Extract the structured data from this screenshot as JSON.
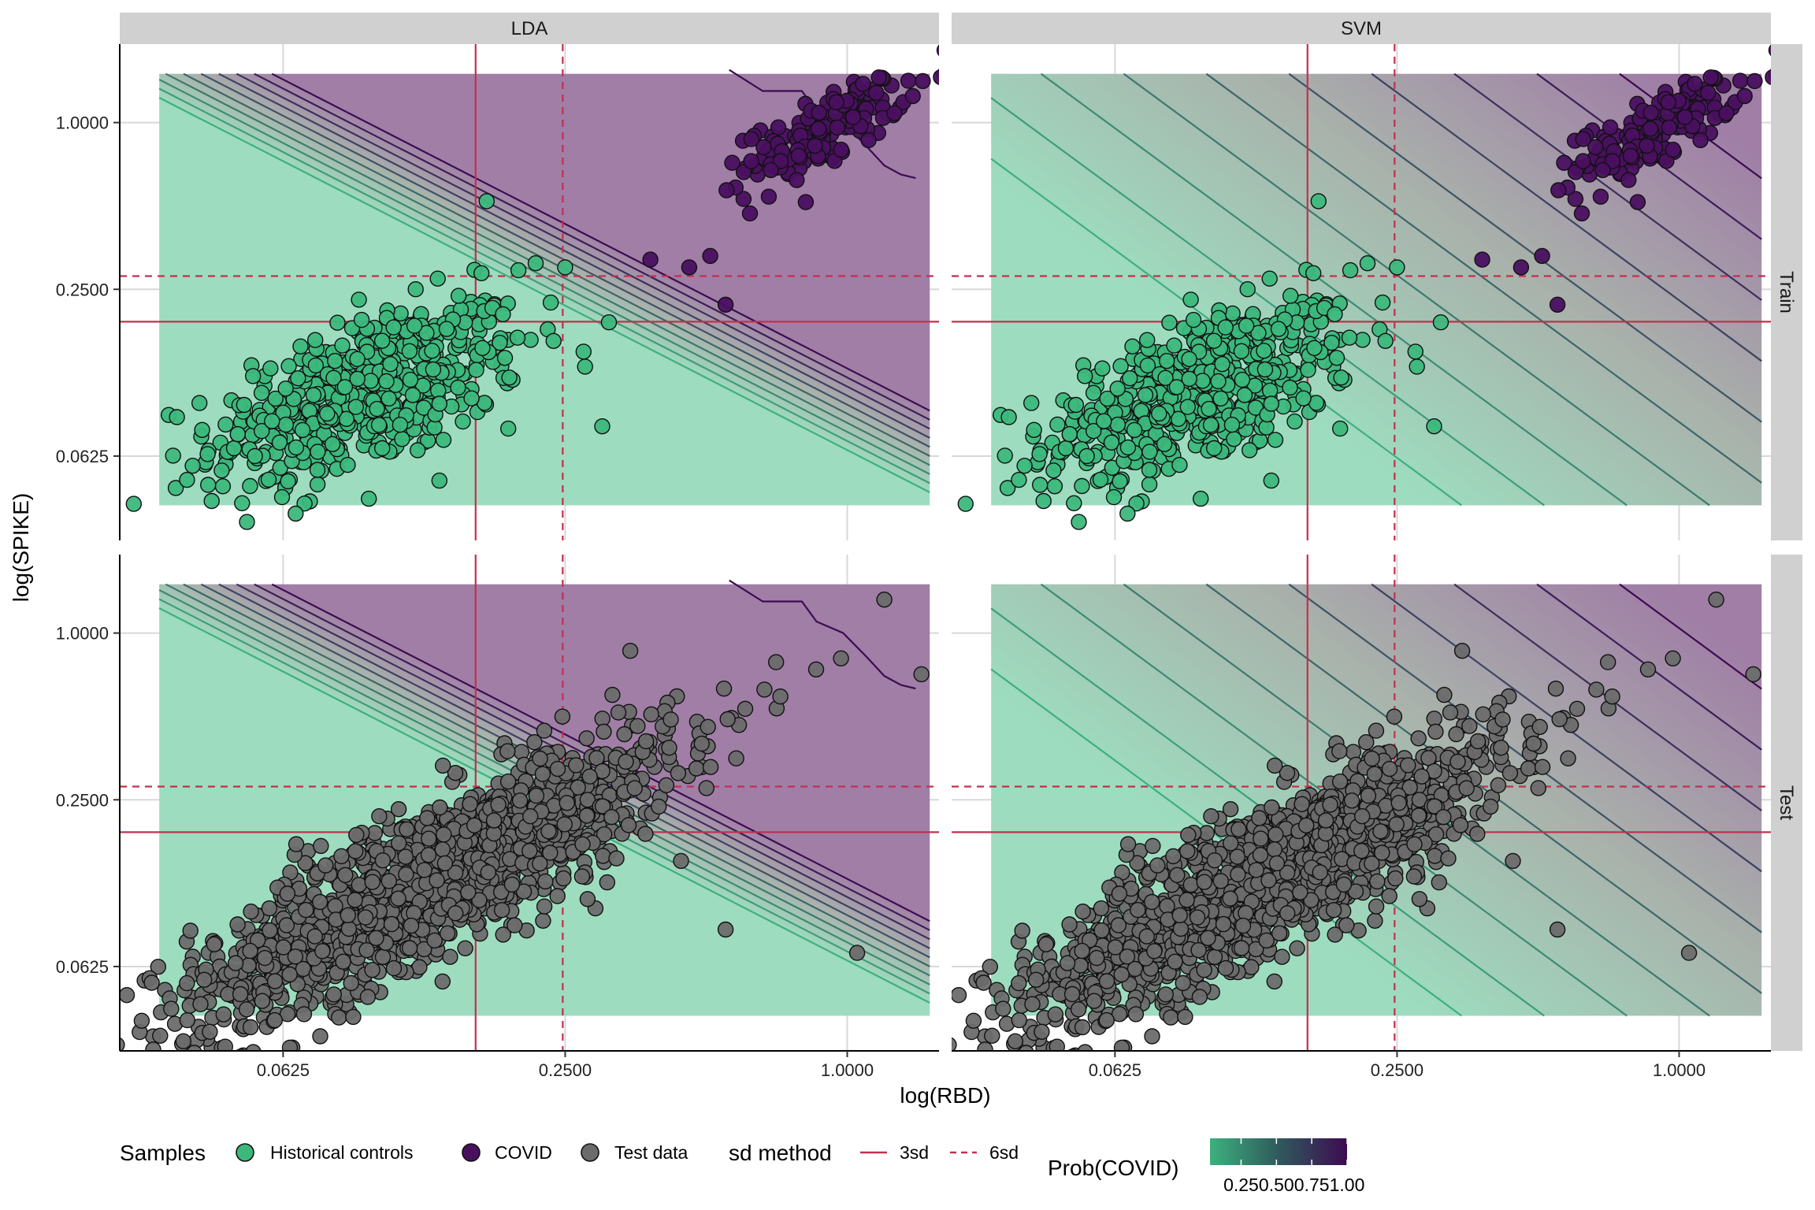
{
  "chart_data": {
    "type": "scatter",
    "facets": {
      "columns": [
        "LDA",
        "SVM"
      ],
      "rows": [
        "Train",
        "Test"
      ]
    },
    "xlabel": "log(RBD)",
    "ylabel": "log(SPIKE)",
    "x_scale": "log2",
    "y_scale": "log2",
    "xlim": [
      0.028,
      1.57
    ],
    "ylim": [
      0.031,
      1.92
    ],
    "x_ticks": [
      0.0625,
      0.25,
      1.0
    ],
    "x_tick_labels": [
      "0.0625",
      "0.2500",
      "1.0000"
    ],
    "y_ticks": [
      0.0625,
      0.25,
      1.0
    ],
    "y_tick_labels": [
      "0.0625",
      "0.2500",
      "1.0000"
    ],
    "grid": true,
    "thresholds": {
      "3sd": {
        "rbd": 0.161,
        "spike": 0.191
      },
      "6sd": {
        "rbd": 0.247,
        "spike": 0.279
      }
    },
    "probability_surface": {
      "LDA": {
        "boundary": {
          "x1": 0.04,
          "y1": 1.5,
          "x2": 1.3,
          "y2": 0.0735
        },
        "band_log2": 0.28
      },
      "SVM": {
        "boundary": {
          "x1": 0.12,
          "y1": 1.5,
          "x2": 1.35,
          "y2": 0.0735
        },
        "band_log2": 1.7
      }
    },
    "series": [
      {
        "name": "Historical controls",
        "panel_row": "Train",
        "cluster": {
          "center": [
            0.095,
            0.105
          ],
          "spread": [
            0.55,
            0.55
          ],
          "corr": 0.55,
          "count": 520
        },
        "sample_points": [
          [
            0.044,
            0.043
          ],
          [
            0.03,
            0.042
          ],
          [
            0.17,
            0.52
          ],
          [
            0.25,
            0.3
          ],
          [
            0.31,
            0.19
          ],
          [
            0.19,
            0.12
          ],
          [
            0.3,
            0.08
          ],
          [
            0.05,
            0.075
          ],
          [
            0.09,
            0.14
          ],
          [
            0.13,
            0.15
          ]
        ]
      },
      {
        "name": "COVID",
        "panel_row": "Train",
        "cluster": {
          "center": [
            0.9,
            0.95
          ],
          "spread": [
            0.28,
            0.3
          ],
          "corr": 0.75,
          "count": 150
        },
        "sample_points": [
          [
            0.38,
            0.32
          ],
          [
            0.55,
            0.22
          ],
          [
            0.51,
            0.33
          ],
          [
            0.46,
            0.3
          ],
          [
            1.08,
            1.38
          ],
          [
            0.68,
            0.54
          ],
          [
            0.62,
            0.47
          ],
          [
            0.78,
            0.62
          ]
        ]
      },
      {
        "name": "Test data",
        "panel_row": "Test",
        "cluster": {
          "center": [
            0.13,
            0.13
          ],
          "spread": [
            0.85,
            0.85
          ],
          "corr": 0.85,
          "count": 1500
        },
        "sample_points": [
          [
            1.2,
            1.32
          ],
          [
            1.44,
            0.71
          ],
          [
            0.72,
            0.59
          ],
          [
            0.97,
            0.81
          ],
          [
            0.06,
            0.04
          ],
          [
            0.075,
            0.035
          ],
          [
            0.18,
            0.24
          ],
          [
            0.55,
            0.085
          ],
          [
            1.05,
            0.07
          ]
        ]
      }
    ],
    "legend": {
      "position": "bottom",
      "samples_title": "Samples",
      "samples_items": [
        "Historical controls",
        "COVID",
        "Test data"
      ],
      "line_title": "sd method",
      "line_items": [
        "3sd",
        "6sd"
      ],
      "gradient_title": "Prob(COVID)",
      "gradient_labels": [
        "0.25",
        "0.50",
        "0.75",
        "1.00"
      ],
      "gradient_values": [
        0.25,
        0.5,
        0.75,
        1.0
      ]
    }
  },
  "colors": {
    "low_prob": "#3db07e",
    "high_prob": "#3d0b52",
    "controls_fill": "#3cb87c",
    "covid_fill": "#4a1060",
    "test_fill": "#6b6b6b",
    "threshold_line": "#c2304f",
    "strip_bg": "#d0d0d0",
    "grid": "#d8d8d8"
  }
}
